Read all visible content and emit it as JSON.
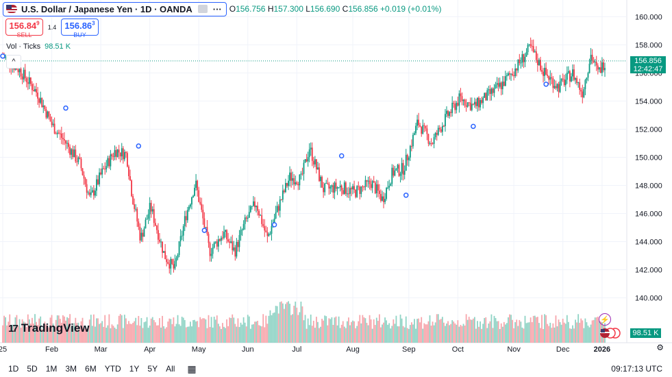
{
  "header": {
    "title": "U.S. Dollar / Japanese Yen · 1D · OANDA",
    "open_label": "O",
    "open": "156.756",
    "high_label": "H",
    "high": "157.300",
    "low_label": "L",
    "low": "156.690",
    "close_label": "C",
    "close": "156.856",
    "change": "+0.019 (+0.01%)",
    "menu": "···"
  },
  "trade": {
    "sell_price": "156.84",
    "sell_price_sup": "9",
    "sell_label": "SELL",
    "spread": "1.4",
    "buy_price": "156.86",
    "buy_price_sup": "3",
    "buy_label": "BUY"
  },
  "volume": {
    "label": "Vol · Ticks",
    "value": "98.51 K"
  },
  "collapse_icon": "chevron-up-icon",
  "logo": {
    "mark": "17",
    "text": "TradingView"
  },
  "last_price": {
    "price": "156.856",
    "countdown": "12:42:47",
    "color": "#089981"
  },
  "last_volume": "98.51 K",
  "colors": {
    "up": "#089981",
    "down": "#f23645",
    "up_vol": "#8fd3c5",
    "down_vol": "#f7a5ab",
    "grid": "#f0f3fa"
  },
  "bottom": {
    "ranges": [
      "1D",
      "5D",
      "1M",
      "3M",
      "6M",
      "YTD",
      "1Y",
      "5Y",
      "All"
    ],
    "clock": "09:17:13 UTC",
    "calendar_icon": "calendar-icon",
    "settings_icon": "gear-icon"
  },
  "chart_data": {
    "type": "candlestick",
    "y_ticks": [
      "160.000",
      "158.000",
      "156.000",
      "154.000",
      "152.000",
      "150.000",
      "148.000",
      "146.000",
      "144.000",
      "142.000",
      "140.000"
    ],
    "ylim": [
      139.0,
      160.8
    ],
    "x_ticks": [
      "25",
      "Feb",
      "Mar",
      "Apr",
      "May",
      "Jun",
      "Jul",
      "Aug",
      "Sep",
      "Oct",
      "Nov",
      "Dec",
      "2026"
    ],
    "dividend_markers": 8,
    "keypoints": [
      [
        0,
        157.2
      ],
      [
        12,
        156.2
      ],
      [
        25,
        154.5
      ],
      [
        35,
        152.3
      ],
      [
        45,
        151.0
      ],
      [
        55,
        149.5
      ],
      [
        62,
        147.0
      ],
      [
        70,
        148.8
      ],
      [
        80,
        150.5
      ],
      [
        88,
        150.2
      ],
      [
        92,
        147.3
      ],
      [
        98,
        144.2
      ],
      [
        105,
        146.5
      ],
      [
        115,
        143.0
      ],
      [
        122,
        142.0
      ],
      [
        130,
        145.8
      ],
      [
        137,
        148.2
      ],
      [
        147,
        143.3
      ],
      [
        157,
        144.6
      ],
      [
        165,
        143.3
      ],
      [
        172,
        145.3
      ],
      [
        180,
        146.8
      ],
      [
        188,
        144.2
      ],
      [
        196,
        146.5
      ],
      [
        204,
        148.6
      ],
      [
        212,
        148.4
      ],
      [
        218,
        150.7
      ],
      [
        228,
        147.7
      ],
      [
        240,
        147.9
      ],
      [
        250,
        147.5
      ],
      [
        262,
        148.2
      ],
      [
        270,
        147.0
      ],
      [
        277,
        148.9
      ],
      [
        285,
        149.2
      ],
      [
        295,
        152.5
      ],
      [
        305,
        151.0
      ],
      [
        315,
        152.8
      ],
      [
        325,
        154.2
      ],
      [
        335,
        153.6
      ],
      [
        345,
        154.4
      ],
      [
        355,
        155.2
      ],
      [
        365,
        156.4
      ],
      [
        375,
        157.8
      ],
      [
        385,
        156.0
      ],
      [
        395,
        155.0
      ],
      [
        405,
        156.0
      ],
      [
        412,
        154.6
      ],
      [
        418,
        157.3
      ],
      [
        423,
        156.0
      ],
      [
        428,
        156.8
      ]
    ]
  }
}
